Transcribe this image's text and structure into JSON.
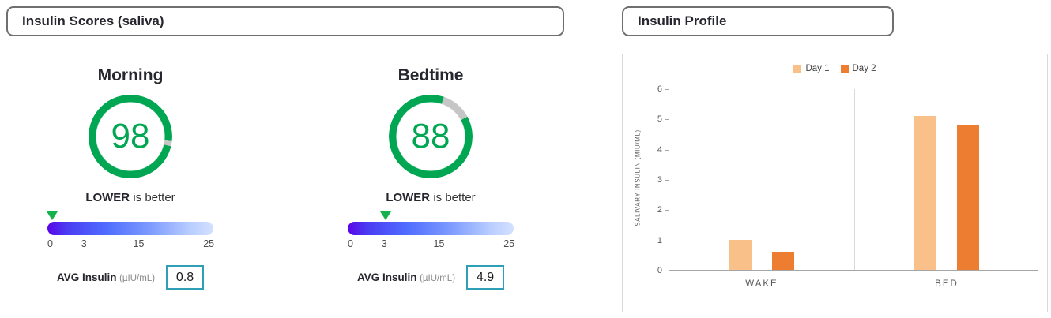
{
  "left_panel": {
    "title": "Insulin Scores (saliva)",
    "gauges": [
      {
        "label": "Morning",
        "score": "98",
        "better_bold": "LOWER",
        "better_rest": "is better",
        "marker_pct": 3,
        "scale": [
          "0",
          "3",
          "15",
          "25"
        ],
        "avg_label": "AVG Insulin",
        "avg_unit": "(µIU/mL)",
        "avg_value": "0.8"
      },
      {
        "label": "Bedtime",
        "score": "88",
        "better_bold": "LOWER",
        "better_rest": "is better",
        "marker_pct": 23,
        "scale": [
          "0",
          "3",
          "15",
          "25"
        ],
        "avg_label": "AVG Insulin",
        "avg_unit": "(µIU/mL)",
        "avg_value": "4.9"
      }
    ]
  },
  "right_panel": {
    "title": "Insulin Profile"
  },
  "chart_data": {
    "type": "bar",
    "title": "Insulin Profile",
    "categories": [
      "WAKE",
      "BED"
    ],
    "series": [
      {
        "name": "Day 1",
        "values": [
          1.0,
          5.1
        ],
        "color": "#F9C089"
      },
      {
        "name": "Day 2",
        "values": [
          0.6,
          4.8
        ],
        "color": "#ED7D31"
      }
    ],
    "xlabel": "",
    "ylabel": "SALIVARY INSULIN (MIU/ML)",
    "ylim": [
      0,
      6
    ],
    "yticks": [
      0,
      1,
      2,
      3,
      4,
      5,
      6
    ],
    "legend_position": "top",
    "grid": false
  },
  "colors": {
    "score_green": "#00A651",
    "ring_gray": "#C6C6C6",
    "value_box_border": "#2E9FB7"
  }
}
